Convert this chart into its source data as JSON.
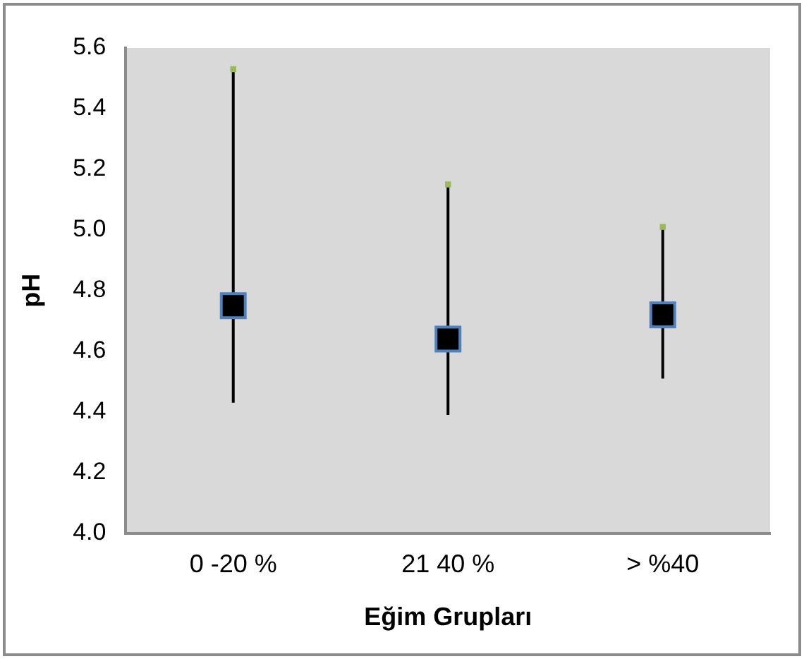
{
  "chart_data": {
    "type": "scatter",
    "xlabel": "Eğim Grupları",
    "ylabel": "pH",
    "categories": [
      "0 -20 %",
      "21 40 %",
      "> %40"
    ],
    "ylim": [
      4.0,
      5.6
    ],
    "yticks": [
      {
        "value": 4.0,
        "label": "4.0"
      },
      4.2,
      4.4,
      4.6,
      4.8,
      {
        "value": 5.0,
        "label": "5.0"
      },
      5.2,
      5.4,
      5.6
    ],
    "grid": false,
    "legend": false,
    "marker": "square",
    "series": [
      {
        "color": "#000000",
        "values": [
          4.75,
          4.64,
          4.72
        ],
        "errors": [
          [
            4.43,
            5.53
          ],
          [
            4.39,
            5.15
          ],
          [
            4.51,
            5.01
          ]
        ]
      },
      {
        "color": "#9bbb59",
        "values": [
          5.53,
          5.15,
          5.01
        ]
      }
    ]
  }
}
